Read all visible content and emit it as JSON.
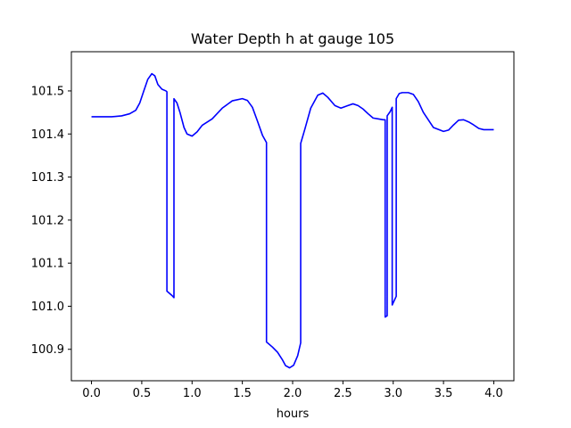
{
  "chart_data": {
    "type": "line",
    "title": "Water Depth h at gauge 105",
    "xlabel": "hours",
    "ylabel": "",
    "xlim": [
      -0.2,
      4.2
    ],
    "ylim": [
      100.827,
      101.591
    ],
    "xticks": [
      0.0,
      0.5,
      1.0,
      1.5,
      2.0,
      2.5,
      3.0,
      3.5,
      4.0
    ],
    "xtick_labels": [
      "0.0",
      "0.5",
      "1.0",
      "1.5",
      "2.0",
      "2.5",
      "3.0",
      "3.5",
      "4.0"
    ],
    "yticks": [
      100.9,
      101.0,
      101.1,
      101.2,
      101.3,
      101.4,
      101.5
    ],
    "ytick_labels": [
      "100.9",
      "101.0",
      "101.1",
      "101.2",
      "101.3",
      "101.4",
      "101.5"
    ],
    "grid": false,
    "line_color": "#0000ff",
    "series": [
      {
        "x": [
          0.0,
          0.1,
          0.2,
          0.3,
          0.38,
          0.44,
          0.48,
          0.52,
          0.56,
          0.6,
          0.63,
          0.66,
          0.7,
          0.74,
          0.75,
          0.75,
          0.8,
          0.82,
          0.82,
          0.85,
          0.88,
          0.92,
          0.95,
          1.0,
          1.05,
          1.1,
          1.2,
          1.3,
          1.4,
          1.5,
          1.55,
          1.6,
          1.65,
          1.7,
          1.74,
          1.74,
          1.8,
          1.85,
          1.9,
          1.93,
          1.97,
          2.01,
          2.05,
          2.08,
          2.08,
          2.12,
          2.18,
          2.25,
          2.3,
          2.35,
          2.42,
          2.48,
          2.55,
          2.6,
          2.65,
          2.7,
          2.75,
          2.8,
          2.85,
          2.9,
          2.92,
          2.92,
          2.94,
          2.94,
          2.97,
          2.99,
          2.99,
          3.03,
          3.03,
          3.06,
          3.09,
          3.15,
          3.2,
          3.25,
          3.3,
          3.4,
          3.5,
          3.55,
          3.6,
          3.65,
          3.7,
          3.75,
          3.8,
          3.85,
          3.9,
          3.95,
          4.0
        ],
        "y": [
          101.44,
          101.44,
          101.44,
          101.442,
          101.447,
          101.455,
          101.472,
          101.5,
          101.527,
          101.54,
          101.535,
          101.515,
          101.504,
          101.5,
          101.498,
          101.035,
          101.025,
          101.02,
          101.482,
          101.472,
          101.45,
          101.415,
          101.4,
          101.395,
          101.405,
          101.42,
          101.435,
          101.46,
          101.477,
          101.482,
          101.478,
          101.462,
          101.43,
          101.397,
          101.38,
          100.917,
          100.905,
          100.893,
          100.875,
          100.862,
          100.857,
          100.863,
          100.885,
          100.915,
          101.378,
          101.41,
          101.46,
          101.49,
          101.495,
          101.485,
          101.466,
          101.46,
          101.466,
          101.47,
          101.466,
          101.458,
          101.447,
          101.437,
          101.435,
          101.433,
          101.433,
          100.975,
          100.978,
          101.442,
          101.452,
          101.462,
          101.003,
          101.023,
          101.482,
          101.494,
          101.496,
          101.496,
          101.492,
          101.475,
          101.45,
          101.415,
          101.406,
          101.409,
          101.421,
          101.432,
          101.433,
          101.428,
          101.421,
          101.413,
          101.41,
          101.41,
          101.41
        ]
      }
    ]
  }
}
